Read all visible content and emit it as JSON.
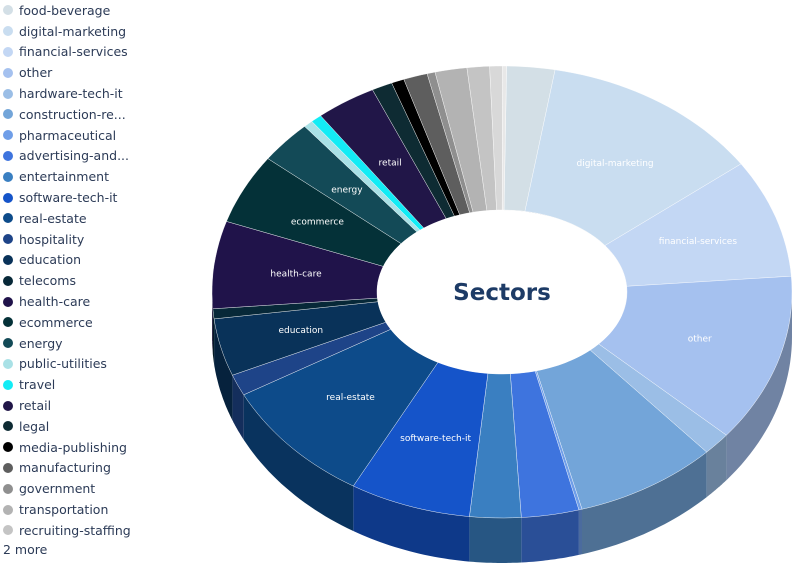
{
  "chart_data": {
    "type": "pie",
    "title": "Sectors",
    "hole": true,
    "style": "3d-donut",
    "legend_position": "left",
    "legend_more": "2 more",
    "slices": [
      {
        "label": "food-beverage",
        "value": 3.0,
        "color": "#d3dfe6"
      },
      {
        "label": "digital-marketing",
        "value": 14.0,
        "color": "#c9ddf0"
      },
      {
        "label": "financial-services",
        "value": 9.5,
        "color": "#c3d7f4"
      },
      {
        "label": "other",
        "value": 13.5,
        "color": "#a5c1ef"
      },
      {
        "label": "hardware-tech-it",
        "value": 1.8,
        "color": "#9bbee6"
      },
      {
        "label": "construction-re...",
        "value": 9.0,
        "color": "#73a5d9"
      },
      {
        "label": "pharmaceutical",
        "value": 0.2,
        "color": "#6f9ee8"
      },
      {
        "label": "advertising-and...",
        "value": 3.6,
        "color": "#3e74de"
      },
      {
        "label": "entertainment",
        "value": 3.2,
        "color": "#3a7fc1"
      },
      {
        "label": "software-tech-it",
        "value": 7.6,
        "color": "#1554c9"
      },
      {
        "label": "real-estate",
        "value": 10.0,
        "color": "#0d4b8a"
      },
      {
        "label": "hospitality",
        "value": 1.7,
        "color": "#1e4488"
      },
      {
        "label": "education",
        "value": 4.6,
        "color": "#093259"
      },
      {
        "label": "telecoms",
        "value": 0.8,
        "color": "#072838"
      },
      {
        "label": "health-care",
        "value": 7.0,
        "color": "#20134a"
      },
      {
        "label": "ecommerce",
        "value": 5.6,
        "color": "#043138"
      },
      {
        "label": "energy",
        "value": 3.4,
        "color": "#134a57"
      },
      {
        "label": "public-utilities",
        "value": 0.6,
        "color": "#a9e1e6"
      },
      {
        "label": "travel",
        "value": 0.7,
        "color": "#13ecf5"
      },
      {
        "label": "retail",
        "value": 3.8,
        "color": "#211648"
      },
      {
        "label": "legal",
        "value": 1.3,
        "color": "#0e2b33"
      },
      {
        "label": "media-publishing",
        "value": 0.8,
        "color": "#000000"
      },
      {
        "label": "manufacturing",
        "value": 1.5,
        "color": "#5e5e5e"
      },
      {
        "label": "government",
        "value": 0.5,
        "color": "#8f8f8f"
      },
      {
        "label": "transportation",
        "value": 2.0,
        "color": "#b3b3b3"
      },
      {
        "label": "recruiting-staffing",
        "value": 1.4,
        "color": "#c4c4c4"
      },
      {
        "label": "",
        "value": 0.8,
        "color": "#d8d8d8"
      },
      {
        "label": "",
        "value": 0.25,
        "color": "#e8e8e8"
      }
    ],
    "inside_labels": [
      "digital-marketing",
      "financial-services",
      "other",
      "software-tech-it",
      "real-estate",
      "education",
      "health-care",
      "ecommerce",
      "energy",
      "retail"
    ]
  }
}
